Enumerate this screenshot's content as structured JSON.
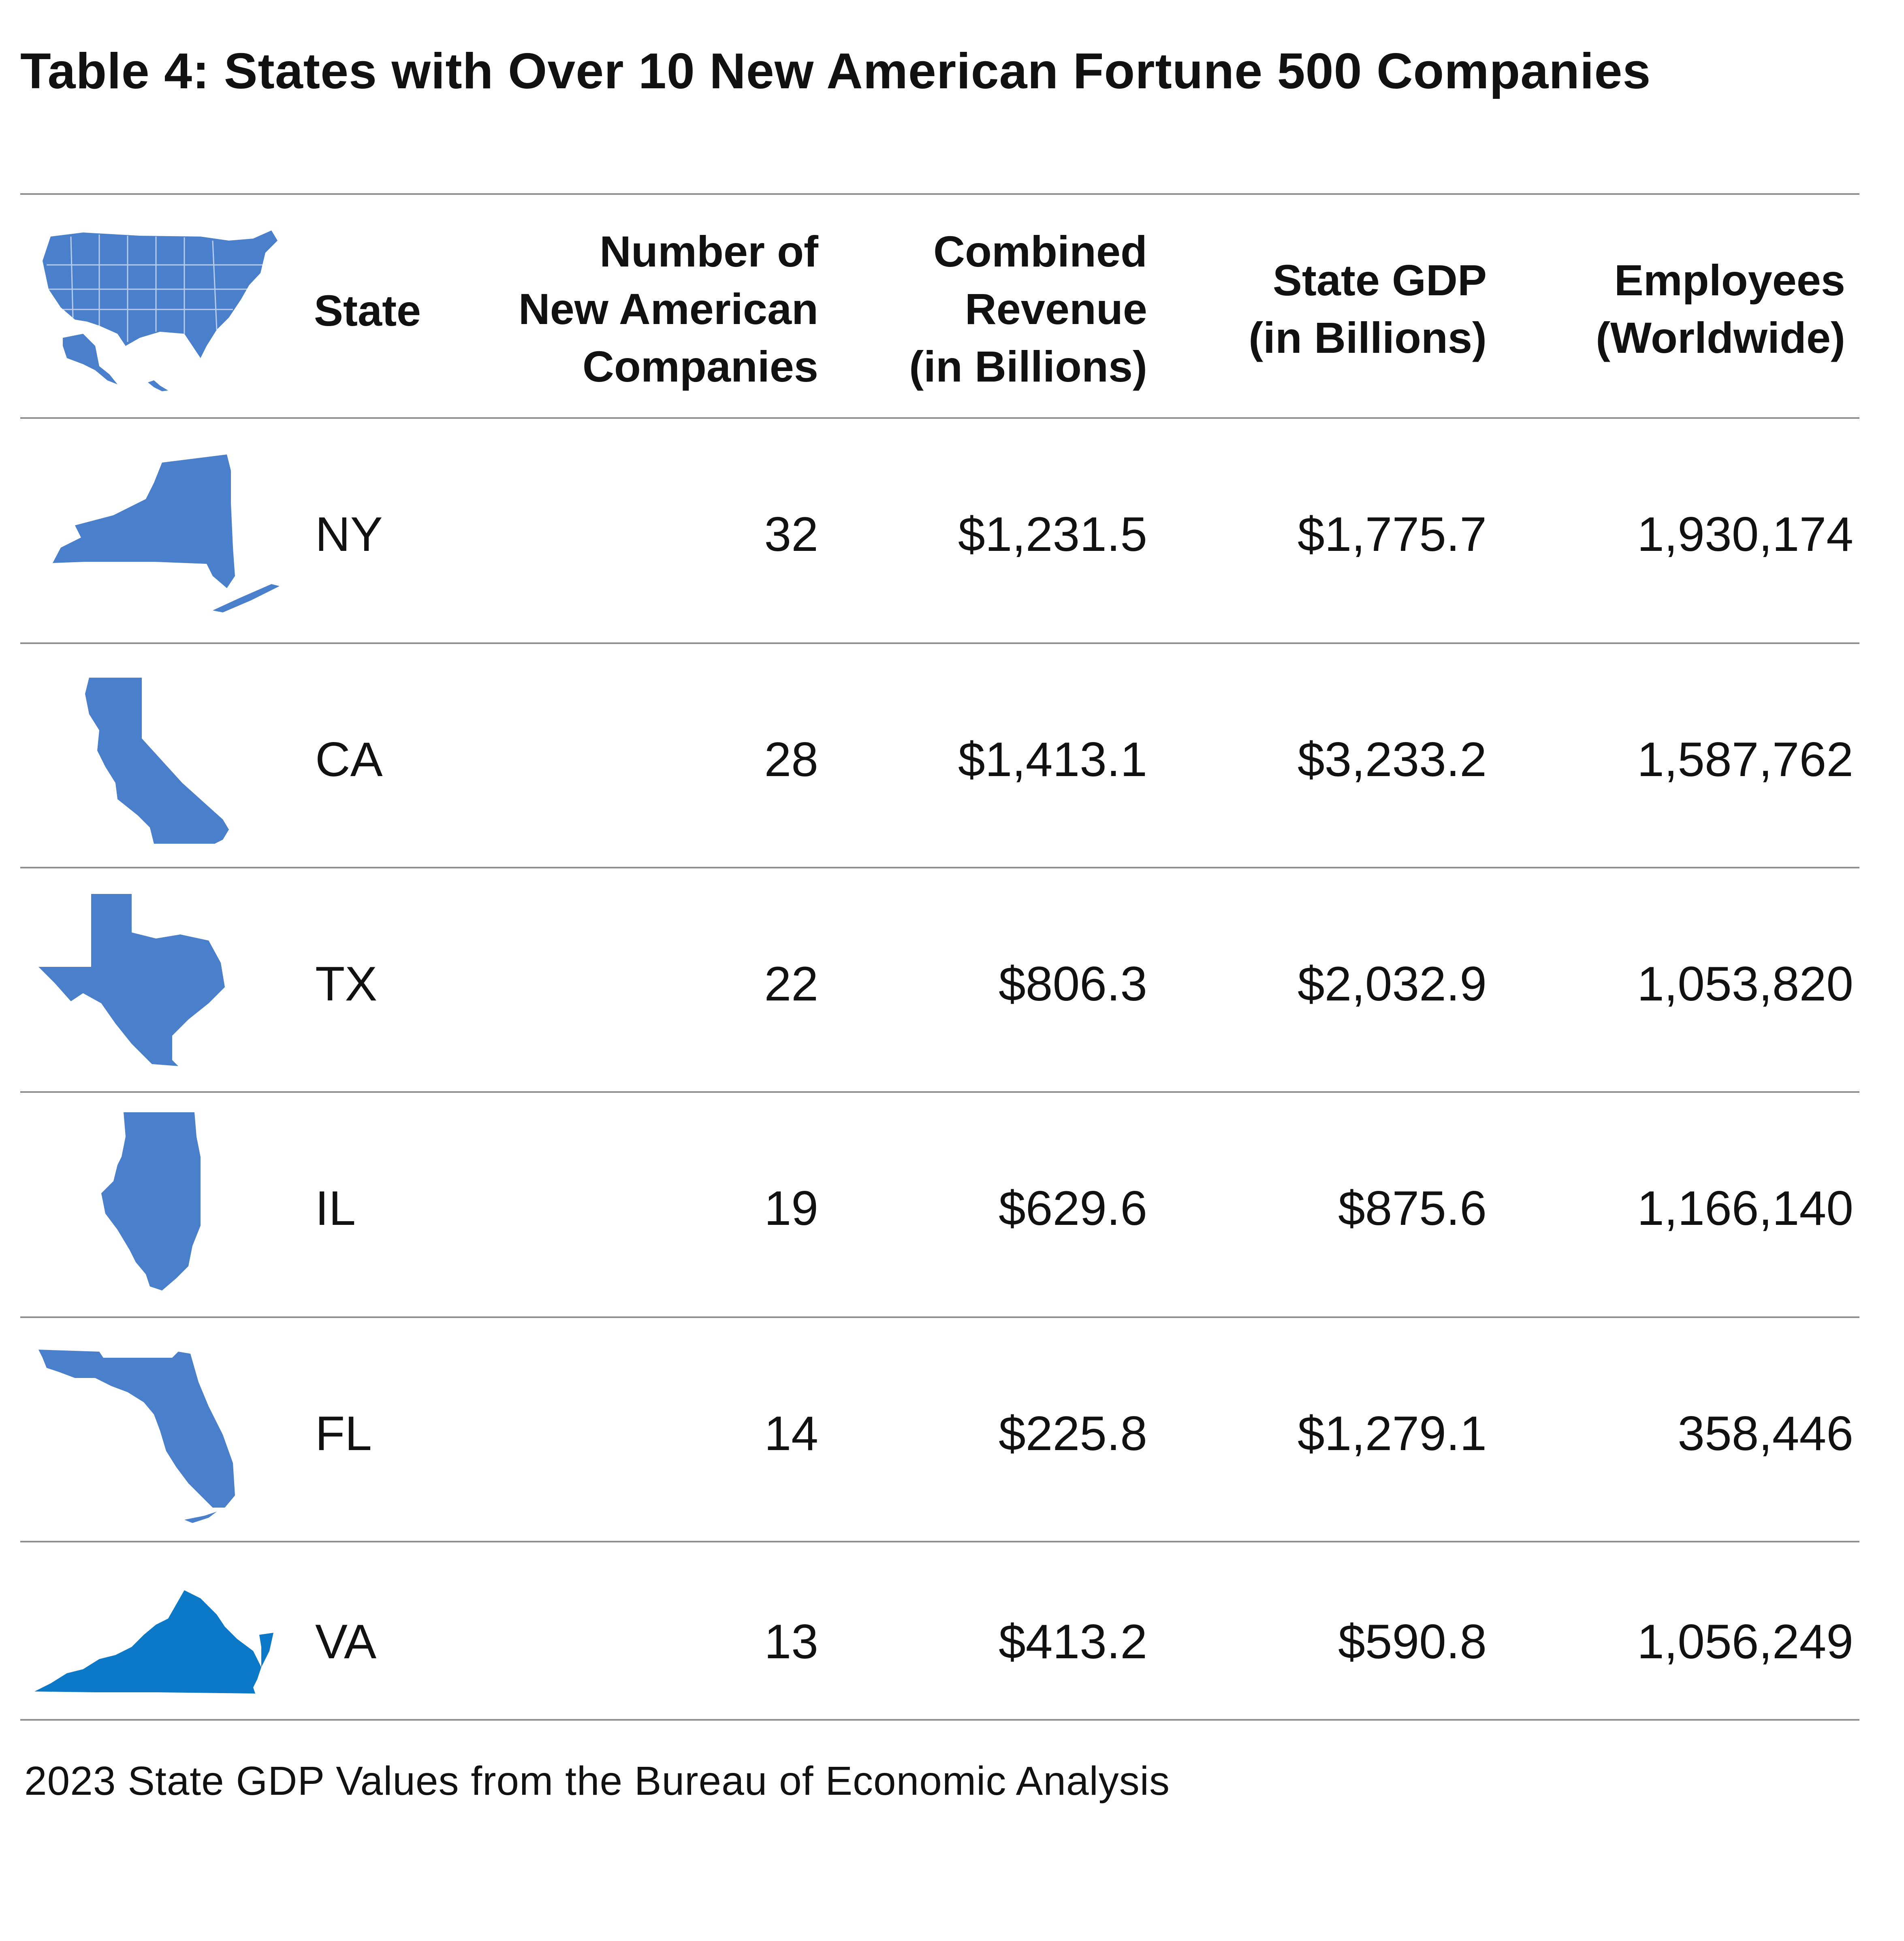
{
  "title": "Table 4: States with Over 10 New American Fortune 500 Companies",
  "header": {
    "icon": "usa-map-icon",
    "state": "State",
    "companies": [
      "Number of",
      "New American",
      "Companies"
    ],
    "revenue": [
      "Combined",
      "Revenue",
      "(in Billions)"
    ],
    "gdp": [
      "State GDP",
      "(in Billions)"
    ],
    "employees": [
      "Employees",
      "(Worldwide)"
    ]
  },
  "rows": [
    {
      "icon": "new-york-map-icon",
      "state": "NY",
      "companies": "32",
      "revenue": "$1,231.5",
      "gdp": "$1,775.7",
      "employees": "1,930,174"
    },
    {
      "icon": "california-map-icon",
      "state": "CA",
      "companies": "28",
      "revenue": "$1,413.1",
      "gdp": "$3,233.2",
      "employees": "1,587,762"
    },
    {
      "icon": "texas-map-icon",
      "state": "TX",
      "companies": "22",
      "revenue": "$806.3",
      "gdp": "$2,032.9",
      "employees": "1,053,820"
    },
    {
      "icon": "illinois-map-icon",
      "state": "IL",
      "companies": "19",
      "revenue": "$629.6",
      "gdp": "$875.6",
      "employees": "1,166,140"
    },
    {
      "icon": "florida-map-icon",
      "state": "FL",
      "companies": "14",
      "revenue": "$225.8",
      "gdp": "$1,279.1",
      "employees": "358,446"
    },
    {
      "icon": "virginia-map-icon",
      "state": "VA",
      "companies": "13",
      "revenue": "$413.2",
      "gdp": "$590.8",
      "employees": "1,056,249"
    }
  ],
  "footnote": "2023 State GDP Values from the Bureau of Economic Analysis",
  "colors": {
    "map_blue": "#4a7fcb",
    "virginia_blue": "#0b78c8",
    "rule": "#8f8f8f"
  }
}
